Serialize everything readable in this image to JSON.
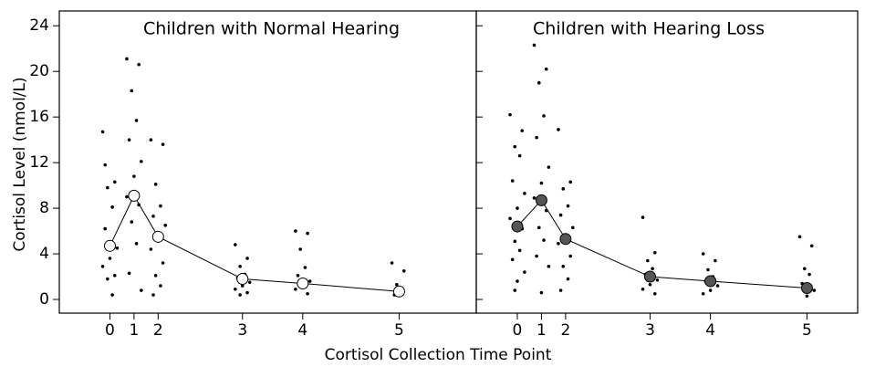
{
  "xlabel": "Cortisol Collection Time Point",
  "ylabel": "Cortisol Level (nmol/L)",
  "chart_data": [
    {
      "type": "scatter",
      "title": "Children with Normal Hearing",
      "xlim": [
        -21,
        152
      ],
      "ylim": [
        -1.2,
        25.3
      ],
      "xticks": [
        {
          "value": 0,
          "label": "0"
        },
        {
          "value": 10,
          "label": "1"
        },
        {
          "value": 20,
          "label": "2"
        },
        {
          "value": 55,
          "label": "3"
        },
        {
          "value": 80,
          "label": "4"
        },
        {
          "value": 120,
          "label": "5"
        }
      ],
      "yticks": [
        0,
        4,
        8,
        12,
        16,
        20,
        24
      ],
      "series": [
        {
          "color": "#000000",
          "marker": "dot",
          "x": [
            -3,
            2,
            -1,
            1,
            -2,
            3,
            0,
            -3,
            2,
            -1,
            1,
            -2,
            7,
            12,
            9,
            11,
            8,
            13,
            10,
            7,
            12,
            9,
            11,
            8,
            13,
            17,
            22,
            19,
            21,
            18,
            23,
            20,
            17,
            22,
            19,
            21,
            18,
            52,
            57,
            54,
            56,
            53,
            58,
            55,
            52,
            57,
            54,
            77,
            82,
            79,
            81,
            78,
            83,
            80,
            77,
            82,
            117,
            122,
            119,
            121,
            118
          ],
          "values": [
            14.7,
            10.3,
            9.8,
            8.1,
            6.2,
            4.5,
            3.6,
            2.9,
            2.1,
            1.8,
            0.4,
            11.8,
            21.1,
            20.6,
            18.3,
            15.7,
            14,
            12.1,
            10.8,
            9,
            8.3,
            6.8,
            4.9,
            2.3,
            0.8,
            14,
            13.6,
            10.1,
            8.2,
            7.3,
            6.5,
            5.1,
            4.4,
            3.2,
            2.1,
            1.2,
            0.4,
            4.8,
            3.6,
            2.9,
            2.2,
            1.9,
            1.5,
            1.2,
            0.9,
            0.6,
            0.4,
            6,
            5.8,
            4.4,
            2.8,
            2.1,
            1.6,
            1.2,
            0.9,
            0.5,
            3.2,
            2.5,
            1.3,
            0.8,
            0.4
          ]
        },
        {
          "color": "#ffffff",
          "marker": "line",
          "x": [
            0,
            10,
            20,
            55,
            80,
            120
          ],
          "values": [
            4.7,
            9.1,
            5.5,
            1.8,
            1.4,
            0.7
          ]
        }
      ]
    },
    {
      "type": "scatter",
      "title": "Children with Hearing Loss",
      "xlim": [
        -17,
        141
      ],
      "ylim": [
        -1.2,
        25.3
      ],
      "xticks": [
        {
          "value": 0,
          "label": "0"
        },
        {
          "value": 10,
          "label": "1"
        },
        {
          "value": 20,
          "label": "2"
        },
        {
          "value": 55,
          "label": "3"
        },
        {
          "value": 80,
          "label": "4"
        },
        {
          "value": 120,
          "label": "5"
        }
      ],
      "yticks": [
        0,
        4,
        8,
        12,
        16,
        20,
        24
      ],
      "series": [
        {
          "color": "#000000",
          "marker": "dot",
          "x": [
            -3,
            2,
            -1,
            1,
            -2,
            3,
            0,
            -3,
            2,
            -1,
            1,
            -2,
            3,
            0,
            -1,
            7,
            12,
            9,
            11,
            8,
            13,
            10,
            7,
            12,
            9,
            11,
            8,
            13,
            10,
            17,
            22,
            19,
            21,
            18,
            23,
            20,
            17,
            22,
            19,
            21,
            18,
            52,
            57,
            54,
            56,
            53,
            58,
            55,
            52,
            57,
            77,
            82,
            79,
            81,
            78,
            83,
            80,
            77,
            117,
            122,
            119,
            121,
            118,
            123,
            120
          ],
          "values": [
            16.2,
            14.8,
            13.4,
            12.6,
            10.4,
            9.3,
            8,
            7.1,
            6.2,
            5.1,
            4.3,
            3.5,
            2.4,
            1.6,
            0.8,
            22.3,
            20.2,
            19,
            16.1,
            14.2,
            11.6,
            10.2,
            8.9,
            7.8,
            6.3,
            5.2,
            3.8,
            2.9,
            0.6,
            14.9,
            10.3,
            9.7,
            8.2,
            7.4,
            6.3,
            5.6,
            4.9,
            3.8,
            2.9,
            1.8,
            0.8,
            7.2,
            4.1,
            3.4,
            2.7,
            2.2,
            1.7,
            1.3,
            0.9,
            0.5,
            4,
            3.4,
            2.6,
            2,
            1.6,
            1.2,
            0.8,
            0.5,
            5.5,
            4.7,
            2.7,
            2.2,
            1.4,
            0.8,
            0.3
          ]
        },
        {
          "color": "#555555",
          "marker": "line",
          "x": [
            0,
            10,
            20,
            55,
            80,
            120
          ],
          "values": [
            6.4,
            8.7,
            5.3,
            2.0,
            1.6,
            1.0
          ]
        }
      ]
    }
  ]
}
